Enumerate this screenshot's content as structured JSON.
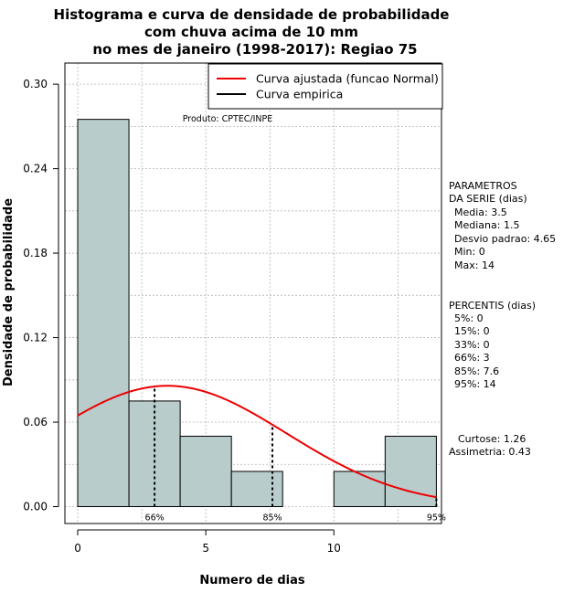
{
  "chart_data": {
    "type": "bar",
    "title": [
      "Histograma e curva de densidade de probabilidade",
      "com chuva acima de 10 mm",
      "no mes de janeiro (1998-2017): Regiao 75"
    ],
    "xlabel": "Numero de dias",
    "ylabel": "Densidade de probabilidade",
    "xlim": [
      -0.5,
      14.2
    ],
    "ylim": [
      -0.012,
      0.315
    ],
    "x_ticks": [
      0,
      5,
      10
    ],
    "x_tick_labels": [
      "0",
      "5",
      "10"
    ],
    "y_ticks": [
      0.0,
      0.06,
      0.12,
      0.18,
      0.24,
      0.3
    ],
    "y_tick_labels": [
      "0.00",
      "0.06",
      "0.12",
      "0.18",
      "0.24",
      "0.30"
    ],
    "x_grid": [
      0,
      2.5,
      5,
      7.5,
      10,
      12.5
    ],
    "y_grid": [
      0.0,
      0.03,
      0.06,
      0.09,
      0.12,
      0.15,
      0.18,
      0.21,
      0.24,
      0.27,
      0.3
    ],
    "bins": [
      {
        "x0": 0,
        "x1": 2,
        "density": 0.275
      },
      {
        "x0": 2,
        "x1": 4,
        "density": 0.075
      },
      {
        "x0": 4,
        "x1": 6,
        "density": 0.05
      },
      {
        "x0": 6,
        "x1": 8,
        "density": 0.025
      },
      {
        "x0": 8,
        "x1": 10,
        "density": 0.0
      },
      {
        "x0": 10,
        "x1": 12,
        "density": 0.025
      },
      {
        "x0": 12,
        "x1": 14,
        "density": 0.05
      }
    ],
    "fitted_curve": {
      "name": "Curva ajustada (funcao Normal)",
      "mean": 3.5,
      "sd": 4.65,
      "x_range": [
        0,
        14
      ],
      "color": "#ee0000"
    },
    "empirical_curve": {
      "name": "Curva empirica",
      "color": "#000000"
    },
    "percentile_markers": [
      {
        "label": "66%",
        "x": 3
      },
      {
        "label": "85%",
        "x": 7.6
      },
      {
        "label": "95%",
        "x": 14
      }
    ],
    "legend_position": "top-right",
    "legend": [
      {
        "label": "Curva ajustada (funcao Normal)",
        "color": "#ee0000"
      },
      {
        "label": "Curva empirica",
        "color": "#000000"
      }
    ],
    "credit": "Produto: CPTEC/INPE",
    "bar_color": "#b8cccc"
  },
  "side_panel": {
    "parametros": [
      "PARAMETROS",
      "DA SERIE (dias)",
      "Media: 3.5",
      "Mediana: 1.5",
      "Desvio padrao: 4.65",
      "Min: 0",
      "Max: 14"
    ],
    "percentis": [
      "PERCENTIS (dias)",
      "5%: 0",
      "15%: 0",
      "33%: 0",
      "66%: 3",
      "85%: 7.6",
      "95%: 14"
    ],
    "stats": [
      "Curtose: 1.26",
      "Assimetria: 0.43"
    ]
  }
}
